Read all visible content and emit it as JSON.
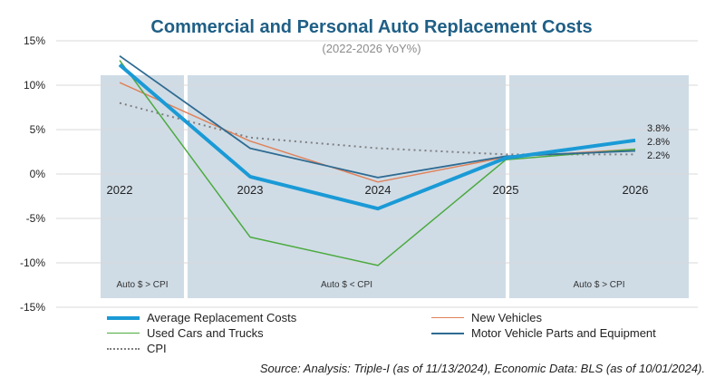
{
  "chart_data": {
    "type": "line",
    "title": "Commercial and Personal Auto Replacement Costs",
    "subtitle": "(2022-2026 YoY%)",
    "categories": [
      "2022",
      "2023",
      "2024",
      "2025",
      "2026"
    ],
    "ylim": [
      -15,
      15
    ],
    "yticks": [
      "15%",
      "10%",
      "5%",
      "0%",
      "-5%",
      "-10%",
      "-15%"
    ],
    "ytick_values": [
      15,
      10,
      5,
      0,
      -5,
      -10,
      -15
    ],
    "series": [
      {
        "name": "Average Replacement Costs",
        "color": "#1a9ad6",
        "values": [
          12.3,
          -0.3,
          -3.9,
          1.8,
          3.8
        ]
      },
      {
        "name": "New Vehicles",
        "color": "#e0825a",
        "values": [
          10.3,
          3.7,
          -0.9,
          1.9,
          2.8
        ]
      },
      {
        "name": "Used Cars and Trucks",
        "color": "#4caa3f",
        "values": [
          12.8,
          -7.1,
          -10.3,
          1.6,
          2.8
        ]
      },
      {
        "name": "Motor Vehicle Parts and Equipment",
        "color": "#2f6b92",
        "values": [
          13.3,
          2.9,
          -0.4,
          2.0,
          2.6
        ]
      },
      {
        "name": "CPI",
        "color": "#7f7f7f",
        "values": [
          8.0,
          4.1,
          2.9,
          2.2,
          2.2
        ]
      }
    ],
    "end_labels": [
      "3.8%",
      "2.8%",
      "2.2%"
    ],
    "regions": [
      {
        "label": "Auto $ > CPI"
      },
      {
        "label": "Auto $ < CPI"
      },
      {
        "label": "Auto $ > CPI"
      }
    ],
    "source": "Source: Analysis: Triple-I (as of 11/13/2024), Economic Data: BLS (as of 10/01/2024)."
  }
}
